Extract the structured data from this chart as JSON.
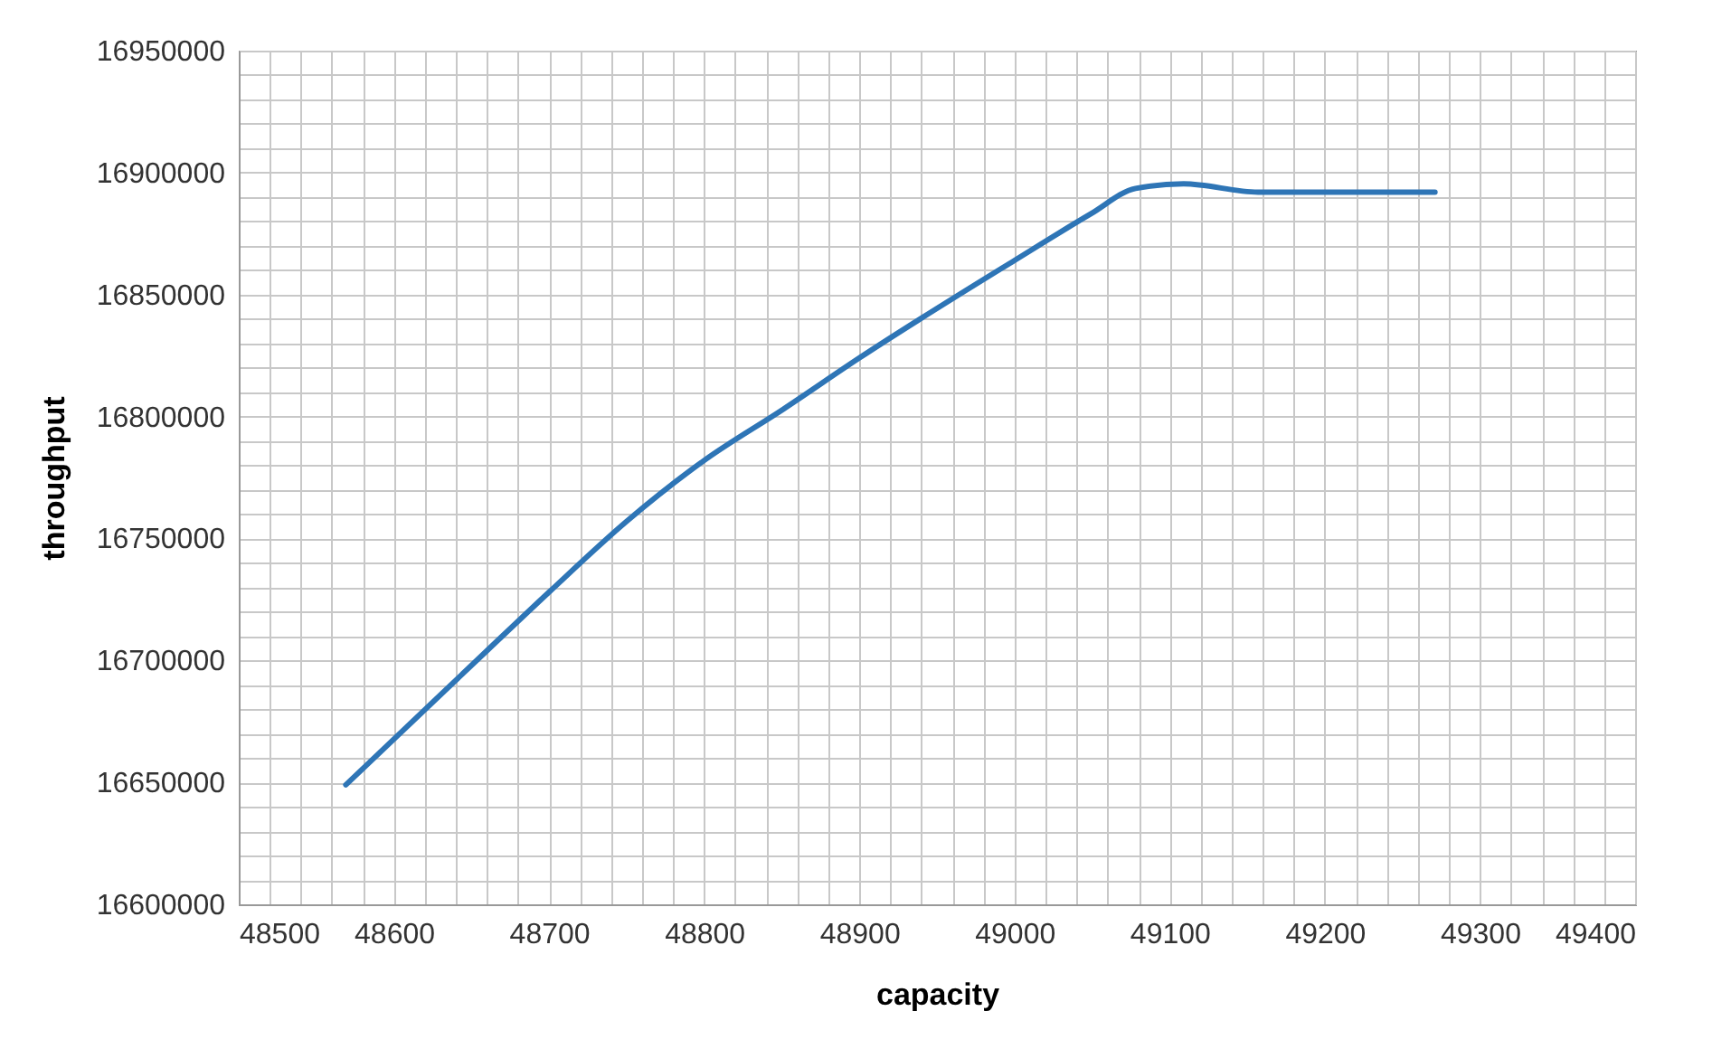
{
  "chart_data": {
    "type": "line",
    "xlabel": "capacity",
    "ylabel": "throughput",
    "x": [
      48569,
      48660,
      48700,
      48750,
      48800,
      48851,
      48900,
      49000,
      49049,
      49078,
      49109,
      49157,
      49200,
      49271
    ],
    "series": [
      {
        "color": "#2e75b6",
        "values": [
          16649000,
          16704000,
          16728000,
          16757000,
          16782000,
          16803000,
          16824000,
          16864000,
          16883000,
          16893500,
          16895400,
          16892000,
          16892000,
          16892000
        ]
      }
    ],
    "xlim": [
      48500,
      49400
    ],
    "xticks": [
      48500,
      {
        "value": 48520,
        "label": null
      },
      {
        "value": 48540,
        "label": null
      },
      {
        "value": 48560,
        "label": null
      },
      {
        "value": 48580,
        "label": null
      },
      48600,
      {
        "value": 48620,
        "label": null
      },
      {
        "value": 48640,
        "label": null
      },
      {
        "value": 48660,
        "label": null
      },
      {
        "value": 48680,
        "label": null
      },
      48700,
      {
        "value": 48720,
        "label": null
      },
      {
        "value": 48740,
        "label": null
      },
      {
        "value": 48760,
        "label": null
      },
      {
        "value": 48780,
        "label": null
      },
      48800,
      {
        "value": 48820,
        "label": null
      },
      {
        "value": 48840,
        "label": null
      },
      {
        "value": 48860,
        "label": null
      },
      {
        "value": 48880,
        "label": null
      },
      48900,
      {
        "value": 48920,
        "label": null
      },
      {
        "value": 48940,
        "label": null
      },
      {
        "value": 48960,
        "label": null
      },
      {
        "value": 48980,
        "label": null
      },
      49000,
      {
        "value": 49020,
        "label": null
      },
      {
        "value": 49040,
        "label": null
      },
      {
        "value": 49060,
        "label": null
      },
      {
        "value": 49080,
        "label": null
      },
      49100,
      {
        "value": 49120,
        "label": null
      },
      {
        "value": 49140,
        "label": null
      },
      {
        "value": 49160,
        "label": null
      },
      {
        "value": 49180,
        "label": null
      },
      49200,
      {
        "value": 49220,
        "label": null
      },
      {
        "value": 49240,
        "label": null
      },
      {
        "value": 49260,
        "label": null
      },
      {
        "value": 49280,
        "label": null
      },
      49300,
      {
        "value": 49320,
        "label": null
      },
      {
        "value": 49340,
        "label": null
      },
      {
        "value": 49360,
        "label": null
      },
      {
        "value": 49380,
        "label": null
      },
      49400
    ],
    "ylim": [
      16600000,
      16950000
    ],
    "yticks": [
      16600000,
      {
        "value": 16610000,
        "label": null
      },
      {
        "value": 16620000,
        "label": null
      },
      {
        "value": 16630000,
        "label": null
      },
      {
        "value": 16640000,
        "label": null
      },
      16650000,
      {
        "value": 16660000,
        "label": null
      },
      {
        "value": 16670000,
        "label": null
      },
      {
        "value": 16680000,
        "label": null
      },
      {
        "value": 16690000,
        "label": null
      },
      16700000,
      {
        "value": 16710000,
        "label": null
      },
      {
        "value": 16720000,
        "label": null
      },
      {
        "value": 16730000,
        "label": null
      },
      {
        "value": 16740000,
        "label": null
      },
      16750000,
      {
        "value": 16760000,
        "label": null
      },
      {
        "value": 16770000,
        "label": null
      },
      {
        "value": 16780000,
        "label": null
      },
      {
        "value": 16790000,
        "label": null
      },
      16800000,
      {
        "value": 16810000,
        "label": null
      },
      {
        "value": 16820000,
        "label": null
      },
      {
        "value": 16830000,
        "label": null
      },
      {
        "value": 16840000,
        "label": null
      },
      16850000,
      {
        "value": 16860000,
        "label": null
      },
      {
        "value": 16870000,
        "label": null
      },
      {
        "value": 16880000,
        "label": null
      },
      {
        "value": 16890000,
        "label": null
      },
      16900000,
      {
        "value": 16910000,
        "label": null
      },
      {
        "value": 16920000,
        "label": null
      },
      {
        "value": 16930000,
        "label": null
      },
      {
        "value": 16940000,
        "label": null
      },
      16950000
    ],
    "grid": true,
    "marker": "none",
    "line_style": "solid"
  }
}
